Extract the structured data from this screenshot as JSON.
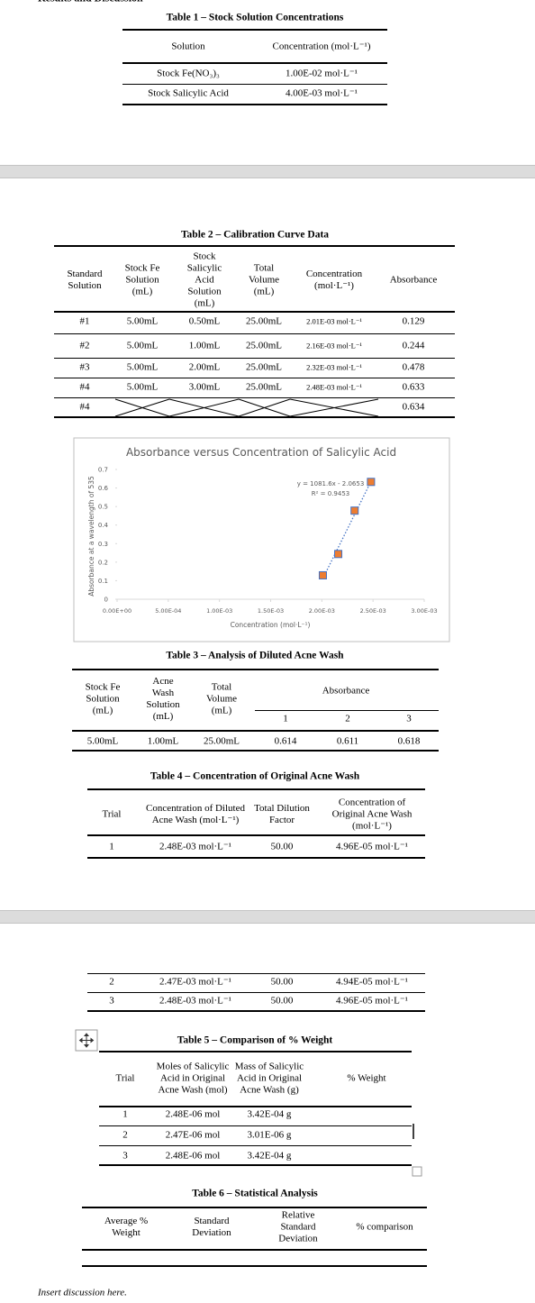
{
  "header": {
    "title": "Results and Discussion"
  },
  "table1": {
    "title": "Table 1 – Stock Solution Concentrations",
    "columns": [
      "Solution",
      "Concentration (mol·L⁻¹)"
    ],
    "rows": [
      [
        "Stock Fe(NO₃)₃",
        "1.00E-02 mol·L⁻¹"
      ],
      [
        "Stock Salicylic Acid",
        "4.00E-03 mol·L⁻¹"
      ]
    ]
  },
  "table2": {
    "title": "Table 2 – Calibration Curve Data",
    "columns": [
      "Standard Solution",
      "Stock Fe Solution (mL)",
      "Stock Salicylic Acid Solution (mL)",
      "Total Volume (mL)",
      "Concentration (mol·L⁻¹)",
      "Absorbance"
    ],
    "rows": [
      [
        "#1",
        "5.00mL",
        "0.50mL",
        "25.00mL",
        "2.01E-03 mol·L⁻¹",
        "0.129"
      ],
      [
        "#2",
        "5.00mL",
        "1.00mL",
        "25.00mL",
        "2.16E-03 mol·L⁻¹",
        "0.244"
      ],
      [
        "#3",
        "5.00mL",
        "2.00mL",
        "25.00mL",
        "2.32E-03 mol·L⁻¹",
        "0.478"
      ],
      [
        "#4",
        "5.00mL",
        "3.00mL",
        "25.00mL",
        "2.48E-03 mol·L⁻¹",
        "0.633"
      ]
    ],
    "crossed_row": [
      "#4",
      "0.634"
    ]
  },
  "chart_data": {
    "type": "scatter",
    "title": "Absorbance versus Concentration of Salicylic Acid",
    "x_label": "Concentration (mol·L⁻¹)",
    "y_label": "Absorbance at a wavelength of 535",
    "x": [
      0.00201,
      0.00216,
      0.00232,
      0.00248
    ],
    "values": [
      0.129,
      0.244,
      0.478,
      0.633
    ],
    "color": "#ed7d31",
    "trendline": {
      "color": "#4472c4",
      "equation": "y = 1081.6x - 2.0653",
      "r_squared": "R² = 0.9453"
    },
    "xlim": [
      0,
      0.003
    ],
    "xticks": [
      {
        "value": 0,
        "label": "0.00E+00"
      },
      {
        "value": 0.0005,
        "label": "5.00E-04"
      },
      {
        "value": 0.001,
        "label": "1.00E-03"
      },
      {
        "value": 0.0015,
        "label": "1.50E-03"
      },
      {
        "value": 0.002,
        "label": "2.00E-03"
      },
      {
        "value": 0.0025,
        "label": "2.50E-03"
      },
      {
        "value": 0.003,
        "label": "3.00E-03"
      }
    ],
    "ylim": [
      0,
      0.7
    ],
    "yticks": [
      0,
      0.1,
      0.2,
      0.3,
      0.4,
      0.5,
      0.6,
      0.7
    ]
  },
  "table3": {
    "title": "Table 3 – Analysis of Diluted Acne Wash",
    "columns": [
      "Stock Fe Solution (mL)",
      "Acne Wash Solution (mL)",
      "Total Volume (mL)",
      "Absorbance"
    ],
    "subcolumns": [
      "1",
      "2",
      "3"
    ],
    "rows": [
      [
        "5.00mL",
        "1.00mL",
        "25.00mL",
        "0.614",
        "0.611",
        "0.618"
      ]
    ]
  },
  "table4": {
    "title": "Table 4 – Concentration of Original Acne Wash",
    "columns": [
      "Trial",
      "Concentration of Diluted Acne Wash (mol·L⁻¹)",
      "Total Dilution Factor",
      "Concentration of Original Acne Wash (mol·L⁻¹)"
    ],
    "rows": [
      [
        "1",
        "2.48E-03 mol·L⁻¹",
        "50.00",
        "4.96E-05 mol·L⁻¹"
      ]
    ],
    "continued_rows": [
      [
        "2",
        "2.47E-03 mol·L⁻¹",
        "50.00",
        "4.94E-05 mol·L⁻¹"
      ],
      [
        "3",
        "2.48E-03 mol·L⁻¹",
        "50.00",
        "4.96E-05 mol·L⁻¹"
      ]
    ]
  },
  "table5": {
    "title": "Table 5 – Comparison of % Weight",
    "columns": [
      "Trial",
      "Moles of Salicylic Acid in Original Acne Wash (mol)",
      "Mass of Salicylic Acid in Original Acne Wash (g)",
      "% Weight"
    ],
    "rows": [
      [
        "1",
        "2.48E-06 mol",
        "3.42E-04 g"
      ],
      [
        "2",
        "2.47E-06 mol",
        "3.01E-06 g"
      ],
      [
        "3",
        "2.48E-06 mol",
        "3.42E-04 g"
      ]
    ]
  },
  "table6": {
    "title": "Table 6 – Statistical Analysis",
    "columns": [
      "Average % Weight",
      "Standard Deviation",
      "Relative Standard Deviation",
      "% comparison"
    ]
  },
  "footer": {
    "text": "Insert discussion here."
  }
}
